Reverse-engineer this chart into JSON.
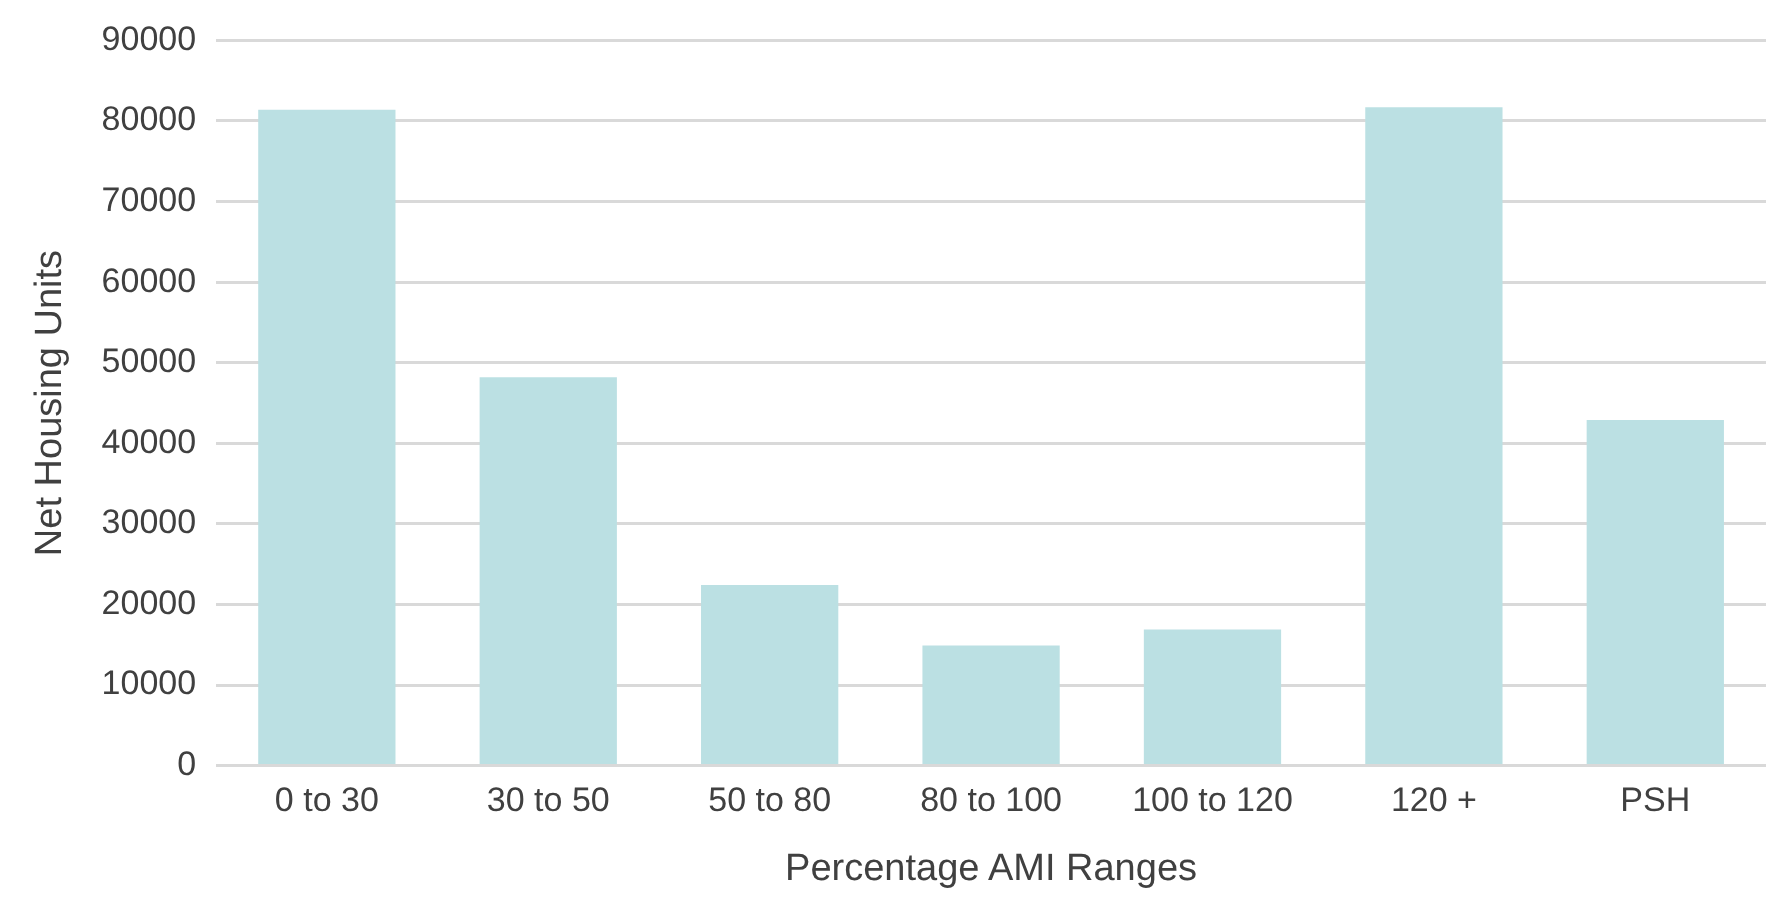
{
  "chart_data": {
    "type": "bar",
    "xlabel": "Percentage AMI Ranges",
    "ylabel": "Net Housing Units",
    "categories": [
      "0 to 30",
      "30 to 50",
      "50 to 80",
      "80 to 100",
      "100 to 120",
      "120 +",
      "PSH"
    ],
    "values": [
      81400,
      48200,
      22400,
      14900,
      16900,
      81700,
      42900
    ],
    "color": "#bbe0e3",
    "ylim": [
      0,
      90000
    ],
    "yticks": [
      0,
      10000,
      20000,
      30000,
      40000,
      50000,
      60000,
      70000,
      80000,
      90000
    ],
    "grid": "y",
    "legend": false
  }
}
